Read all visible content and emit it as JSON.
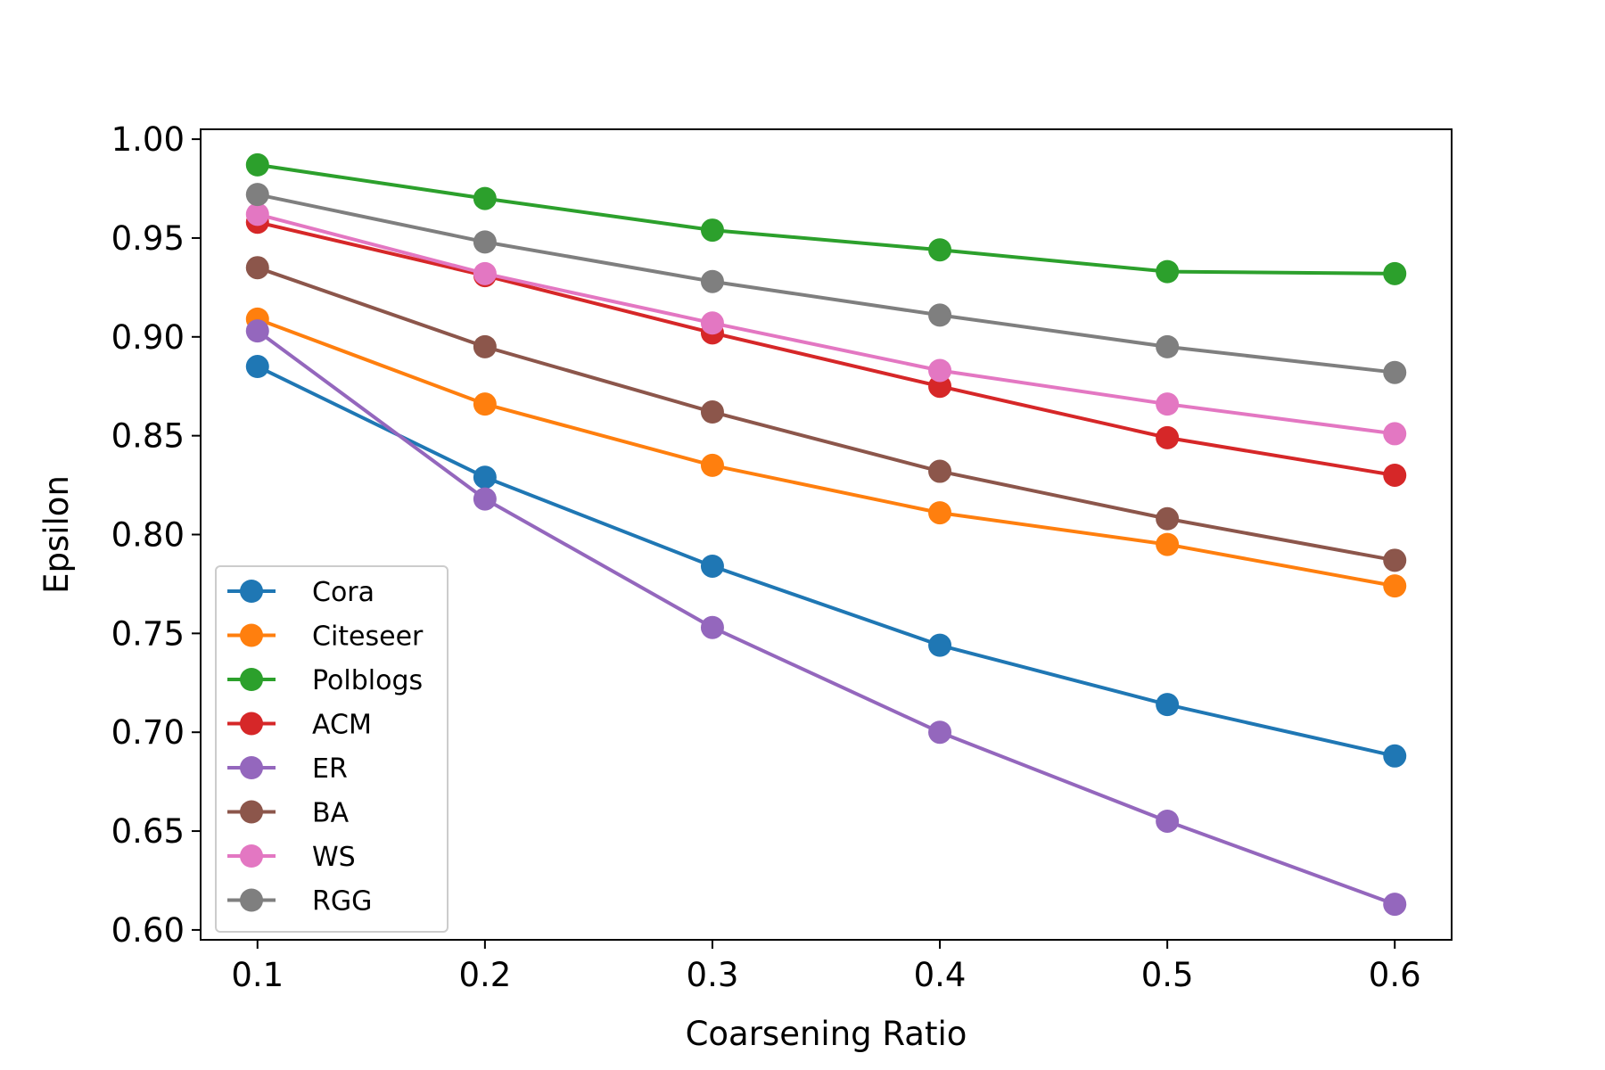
{
  "chart_data": {
    "type": "line",
    "title": "",
    "xlabel": "Coarsening Ratio",
    "ylabel": "Epsilon",
    "x": [
      0.1,
      0.2,
      0.3,
      0.4,
      0.5,
      0.6
    ],
    "xlim": [
      0.075,
      0.625
    ],
    "ylim": [
      0.595,
      1.005
    ],
    "xticks": [
      "0.1",
      "0.2",
      "0.3",
      "0.4",
      "0.5",
      "0.6"
    ],
    "yticks": [
      "0.60",
      "0.65",
      "0.70",
      "0.75",
      "0.80",
      "0.85",
      "0.90",
      "0.95",
      "1.00"
    ],
    "grid": false,
    "legend_position": "lower-left",
    "series": [
      {
        "name": "Cora",
        "color": "#1f77b4",
        "values": [
          0.885,
          0.829,
          0.784,
          0.744,
          0.714,
          0.688
        ]
      },
      {
        "name": "Citeseer",
        "color": "#ff7f0e",
        "values": [
          0.909,
          0.866,
          0.835,
          0.811,
          0.795,
          0.774
        ]
      },
      {
        "name": "Polblogs",
        "color": "#2ca02c",
        "values": [
          0.987,
          0.97,
          0.954,
          0.944,
          0.933,
          0.932
        ]
      },
      {
        "name": "ACM",
        "color": "#d62728",
        "values": [
          0.958,
          0.931,
          0.902,
          0.875,
          0.849,
          0.83
        ]
      },
      {
        "name": "ER",
        "color": "#9467bd",
        "values": [
          0.903,
          0.818,
          0.753,
          0.7,
          0.655,
          0.613
        ]
      },
      {
        "name": "BA",
        "color": "#8c564b",
        "values": [
          0.935,
          0.895,
          0.862,
          0.832,
          0.808,
          0.787
        ]
      },
      {
        "name": "WS",
        "color": "#e377c2",
        "values": [
          0.962,
          0.932,
          0.907,
          0.883,
          0.866,
          0.851
        ]
      },
      {
        "name": "RGG",
        "color": "#7f7f7f",
        "values": [
          0.972,
          0.948,
          0.928,
          0.911,
          0.895,
          0.882
        ]
      }
    ]
  }
}
